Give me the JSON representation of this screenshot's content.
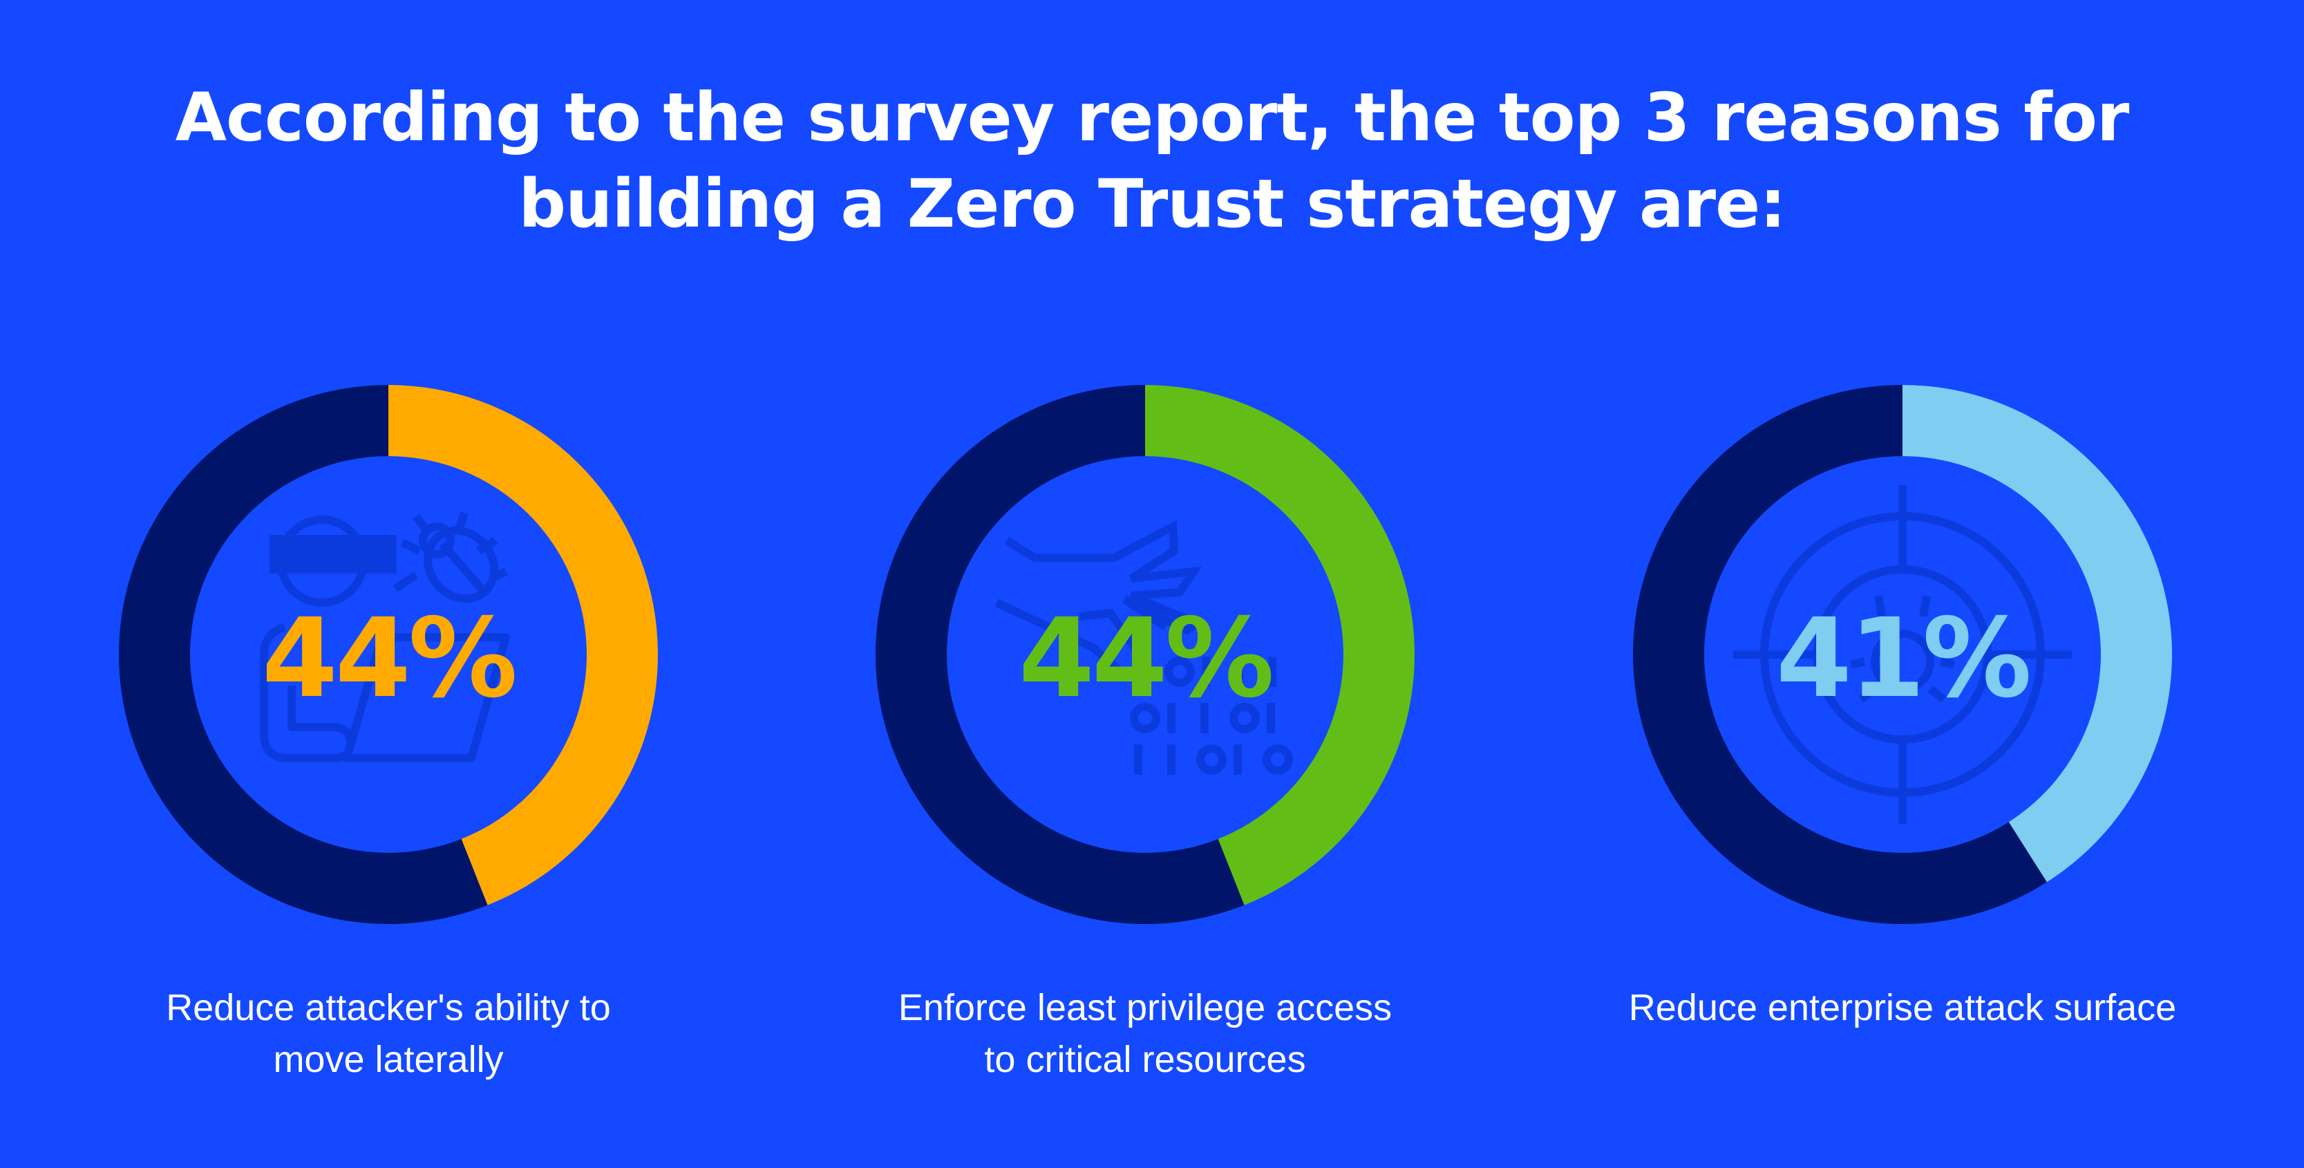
{
  "title": {
    "line1": "According to the survey report, the top 3 reasons for",
    "line2": "building a Zero Trust strategy are:"
  },
  "colors": {
    "background": "#1449FF",
    "track": "#00156A",
    "icon_stroke": "#0C3BDD",
    "text": "#FFFFFF"
  },
  "chart_data": {
    "type": "pie",
    "subtype": "donut",
    "title": "According to the survey report, the top 3 reasons for building a Zero Trust strategy are:",
    "unit": "%",
    "series": [
      {
        "name": "Reduce attacker's ability to move laterally",
        "value": 44,
        "value_label": "44%",
        "label_lines": [
          "Reduce attacker's ability to",
          "move laterally"
        ],
        "color": "#FFAA00",
        "icon": "hacker-bug-laptop-icon"
      },
      {
        "name": "Enforce least privilege access to critical resources",
        "value": 44,
        "value_label": "44%",
        "label_lines": [
          "Enforce least privilege access",
          "to critical resources"
        ],
        "color": "#62BE17",
        "icon": "hand-binary-data-icon"
      },
      {
        "name": "Reduce enterprise attack surface",
        "value": 41,
        "value_label": "41%",
        "label_lines": [
          "Reduce enterprise attack surface"
        ],
        "color": "#80CDF2",
        "icon": "target-bug-icon"
      }
    ],
    "max": 100
  }
}
